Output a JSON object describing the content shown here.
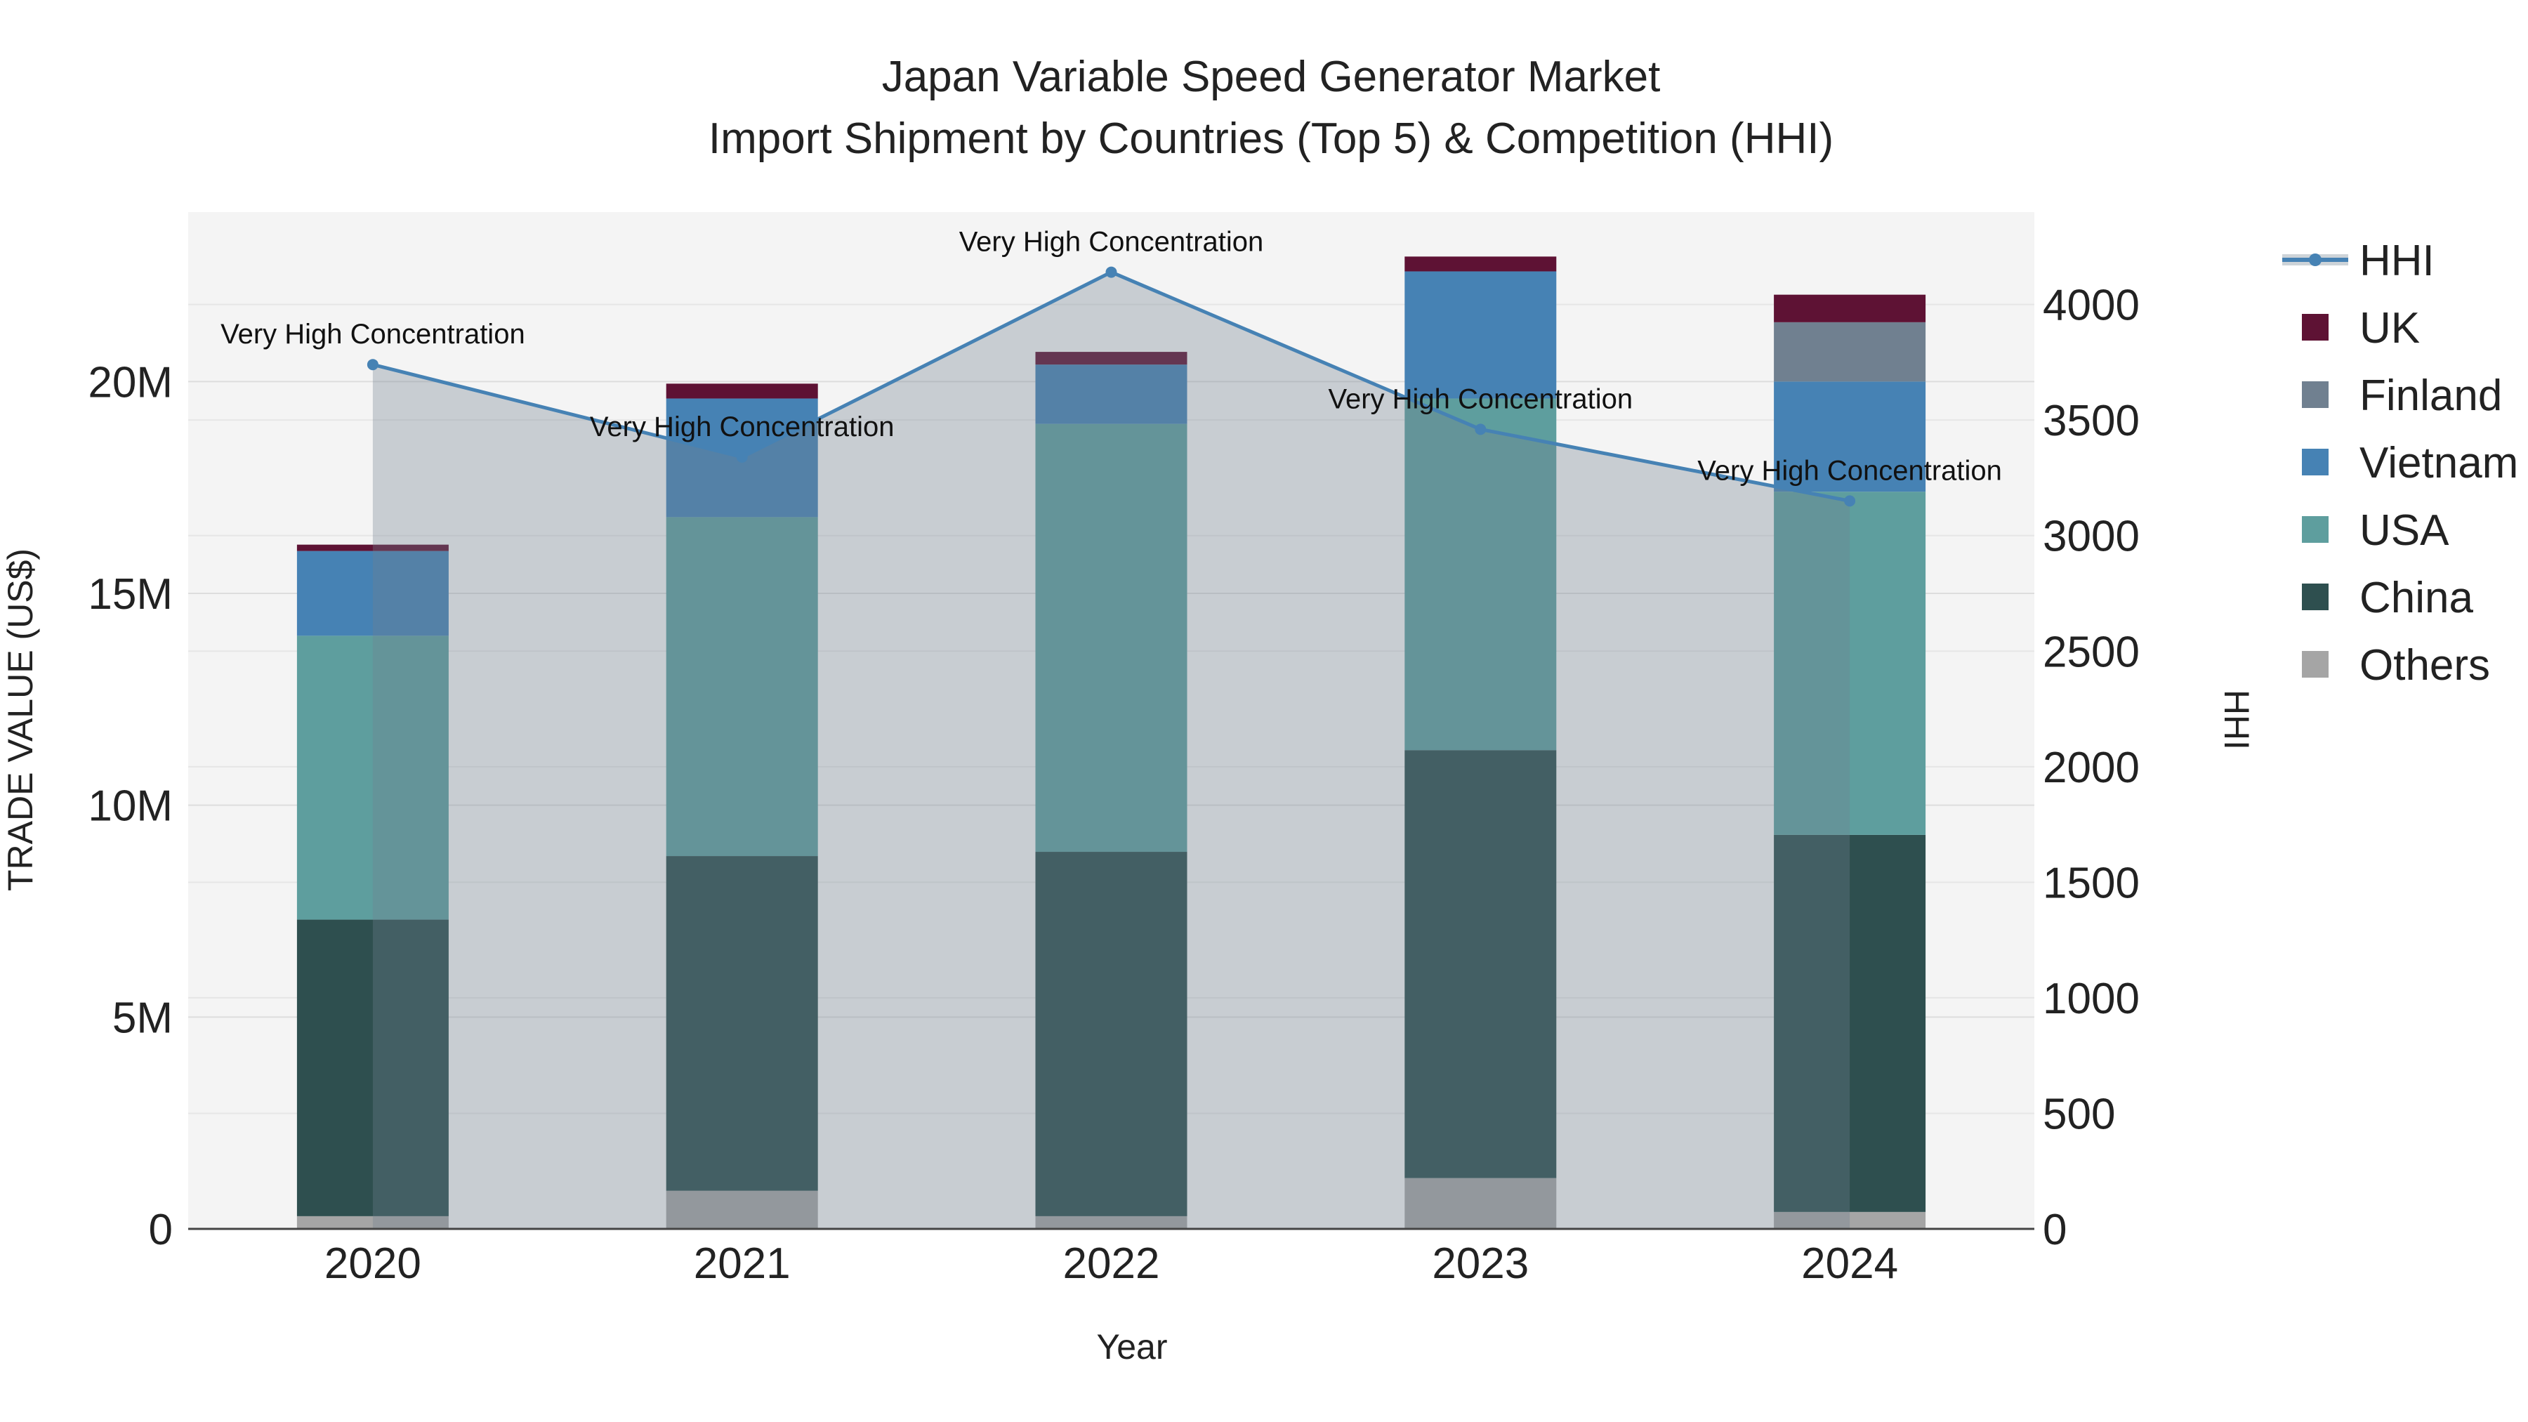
{
  "chart_data": {
    "type": "bar",
    "subtype": "stacked bar with line overlay (dual axis)",
    "title": "Japan Variable Speed Generator Market",
    "subtitle": "Import Shipment by Countries (Top 5) & Competition (HHI)",
    "xlabel": "Year",
    "ylabel": "TRADE VALUE (US$)",
    "y2label": "HHI",
    "categories": [
      "2020",
      "2021",
      "2022",
      "2023",
      "2024"
    ],
    "ylim": [
      0,
      24000000
    ],
    "y2lim": [
      0,
      4400
    ],
    "y_ticks": [
      0,
      5000000,
      10000000,
      15000000,
      20000000
    ],
    "y_tick_labels": [
      "0",
      "5M",
      "10M",
      "15M",
      "20M"
    ],
    "y2_ticks": [
      0,
      500,
      1000,
      1500,
      2000,
      2500,
      3000,
      3500,
      4000
    ],
    "y2_tick_labels": [
      "0",
      "500",
      "1000",
      "1500",
      "2000",
      "2500",
      "3000",
      "3500",
      "4000"
    ],
    "legend_position": "right",
    "series": [
      {
        "name": "Others",
        "color": "#a5a5a5",
        "values": [
          300000,
          900000,
          300000,
          1200000,
          400000
        ]
      },
      {
        "name": "China",
        "color": "#2e4f4f",
        "values": [
          7000000,
          7900000,
          8600000,
          10100000,
          8900000
        ]
      },
      {
        "name": "USA",
        "color": "#5e9e9e",
        "values": [
          6700000,
          8000000,
          10100000,
          8300000,
          8100000
        ]
      },
      {
        "name": "Vietnam",
        "color": "#4682b4",
        "values": [
          2000000,
          2800000,
          1400000,
          3000000,
          2600000
        ]
      },
      {
        "name": "Finland",
        "color": "#708090",
        "values": [
          0,
          0,
          0,
          0,
          1400000
        ]
      },
      {
        "name": "UK",
        "color": "#5e1234",
        "values": [
          150000,
          350000,
          300000,
          350000,
          650000
        ]
      }
    ],
    "hhi": {
      "name": "HHI",
      "color": "#4682b4",
      "values": [
        3740,
        3340,
        4140,
        3460,
        3150
      ],
      "annotations": [
        "Very High Concentration",
        "Very High Concentration",
        "Very High Concentration",
        "Very High Concentration",
        "Very High Concentration"
      ]
    },
    "legend": [
      "HHI",
      "UK",
      "Finland",
      "Vietnam",
      "USA",
      "China",
      "Others"
    ]
  }
}
